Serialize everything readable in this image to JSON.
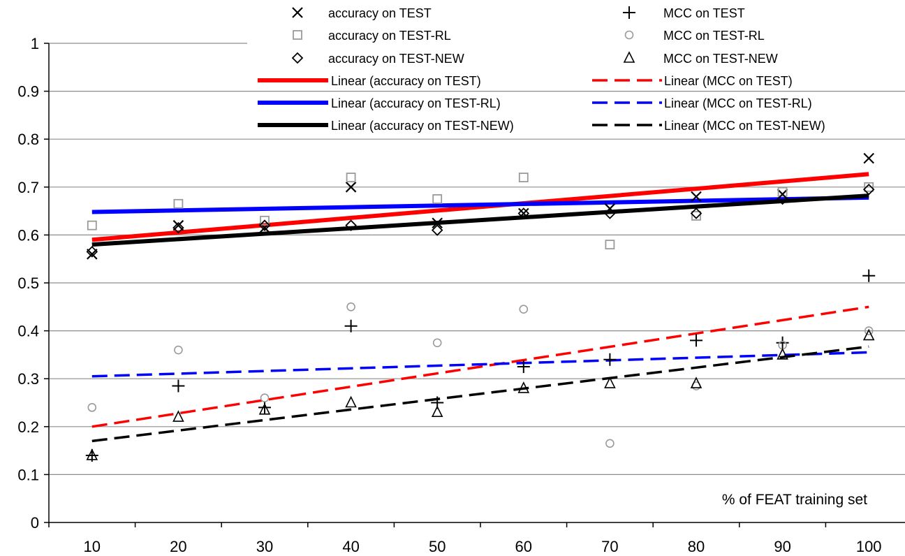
{
  "chart_data": {
    "type": "scatter",
    "x_note": "% of FEAT training set",
    "x": [
      10,
      20,
      30,
      40,
      50,
      60,
      70,
      80,
      90,
      100
    ],
    "x_tick_labels": [
      "10",
      "20",
      "30",
      "40",
      "50",
      "60",
      "70",
      "80",
      "90",
      "100"
    ],
    "y_tick_labels": [
      "0",
      "0.1",
      "0.2",
      "0.3",
      "0.4",
      "0.5",
      "0.6",
      "0.7",
      "0.8",
      "0.9",
      "1"
    ],
    "ylim": [
      0,
      1
    ],
    "grid": "horizontal",
    "legend_position": "top",
    "series": [
      {
        "name": "accuracy on TEST",
        "legend_label": "accuracy on TEST",
        "marker": "x",
        "color": "#000000",
        "values": [
          0.56,
          0.62,
          0.615,
          0.7,
          0.625,
          0.645,
          0.655,
          0.68,
          0.685,
          0.76
        ]
      },
      {
        "name": "accuracy on TEST-RL",
        "legend_label": "accuracy on TEST-RL",
        "marker": "square",
        "color": "#9a9a9a",
        "values": [
          0.62,
          0.665,
          0.63,
          0.72,
          0.675,
          0.72,
          0.58,
          0.64,
          0.69,
          0.7
        ]
      },
      {
        "name": "accuracy on TEST-NEW",
        "legend_label": "accuracy on TEST-NEW",
        "marker": "diamond",
        "color": "#000000",
        "values": [
          0.565,
          0.615,
          0.62,
          0.62,
          0.61,
          0.645,
          0.645,
          0.645,
          0.675,
          0.695
        ]
      },
      {
        "name": "MCC on TEST",
        "legend_label": "MCC on TEST",
        "marker": "plus",
        "color": "#000000",
        "values": [
          0.14,
          0.285,
          0.24,
          0.41,
          0.25,
          0.325,
          0.34,
          0.38,
          0.375,
          0.515
        ]
      },
      {
        "name": "MCC on TEST-RL",
        "legend_label": "MCC on TEST-RL",
        "marker": "circle",
        "color": "#9a9a9a",
        "values": [
          0.24,
          0.36,
          0.26,
          0.45,
          0.375,
          0.445,
          0.165,
          0.285,
          0.37,
          0.4
        ]
      },
      {
        "name": "MCC on TEST-NEW",
        "legend_label": "MCC on TEST-NEW",
        "marker": "triangle",
        "color": "#000000",
        "values": [
          0.14,
          0.22,
          0.235,
          0.25,
          0.23,
          0.28,
          0.29,
          0.29,
          0.35,
          0.39
        ]
      }
    ],
    "trendlines": [
      {
        "legend_label": "Linear (accuracy on TEST)",
        "color": "#ff0000",
        "dash": false,
        "start": [
          10,
          0.59
        ],
        "end": [
          100,
          0.727
        ]
      },
      {
        "legend_label": "Linear (accuracy on TEST-RL)",
        "color": "#0000ff",
        "dash": false,
        "start": [
          10,
          0.648
        ],
        "end": [
          100,
          0.678
        ]
      },
      {
        "legend_label": "Linear (accuracy on TEST-NEW)",
        "color": "#000000",
        "dash": false,
        "start": [
          10,
          0.58
        ],
        "end": [
          100,
          0.682
        ]
      },
      {
        "legend_label": "Linear (MCC on TEST)",
        "color": "#ff0000",
        "dash": true,
        "start": [
          10,
          0.2
        ],
        "end": [
          100,
          0.45
        ]
      },
      {
        "legend_label": "Linear (MCC on TEST-RL)",
        "color": "#0000ff",
        "dash": true,
        "start": [
          10,
          0.305
        ],
        "end": [
          100,
          0.355
        ]
      },
      {
        "legend_label": "Linear (MCC on TEST-NEW)",
        "color": "#000000",
        "dash": true,
        "start": [
          10,
          0.17
        ],
        "end": [
          100,
          0.367
        ]
      }
    ]
  }
}
